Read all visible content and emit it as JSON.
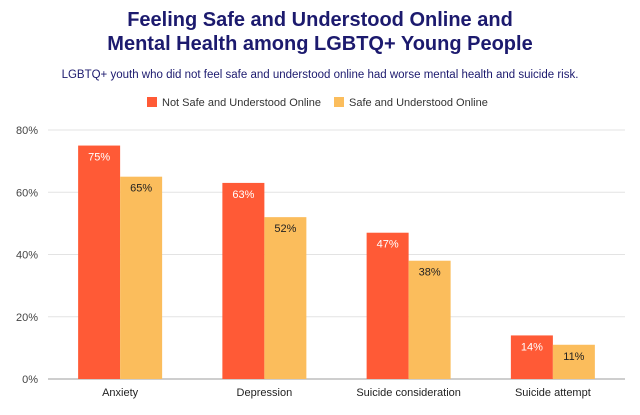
{
  "header": {
    "title_line1": "Feeling Safe and Understood Online and",
    "title_line2": "Mental Health among LGBTQ+ Young People",
    "subtitle": "LGBTQ+ youth who did not feel safe and understood online had worse mental health and suicide risk."
  },
  "chart_data": {
    "type": "bar",
    "title": "Feeling Safe and Understood Online and Mental Health among LGBTQ+ Young People",
    "subtitle": "LGBTQ+ youth who did not feel safe and understood online had worse mental health and suicide risk.",
    "categories": [
      "Anxiety",
      "Depression",
      "Suicide consideration",
      "Suicide attempt"
    ],
    "series": [
      {
        "name": "Not Safe and Understood Online",
        "values": [
          75,
          63,
          47,
          14
        ],
        "labels": [
          "75%",
          "63%",
          "47%",
          "14%"
        ],
        "color": "#ff5a36",
        "label_color": "#ffffff"
      },
      {
        "name": "Safe and Understood Online",
        "values": [
          65,
          52,
          38,
          11
        ],
        "labels": [
          "65%",
          "52%",
          "38%",
          "11%"
        ],
        "color": "#fbbd5c",
        "label_color": "#222222"
      }
    ],
    "ylim": [
      0,
      80
    ],
    "yticks": [
      0,
      20,
      40,
      60,
      80
    ],
    "ytick_labels": [
      "0%",
      "20%",
      "40%",
      "60%",
      "80%"
    ],
    "xlabel": "",
    "ylabel": "",
    "grid": true,
    "legend_position": "top-center"
  }
}
